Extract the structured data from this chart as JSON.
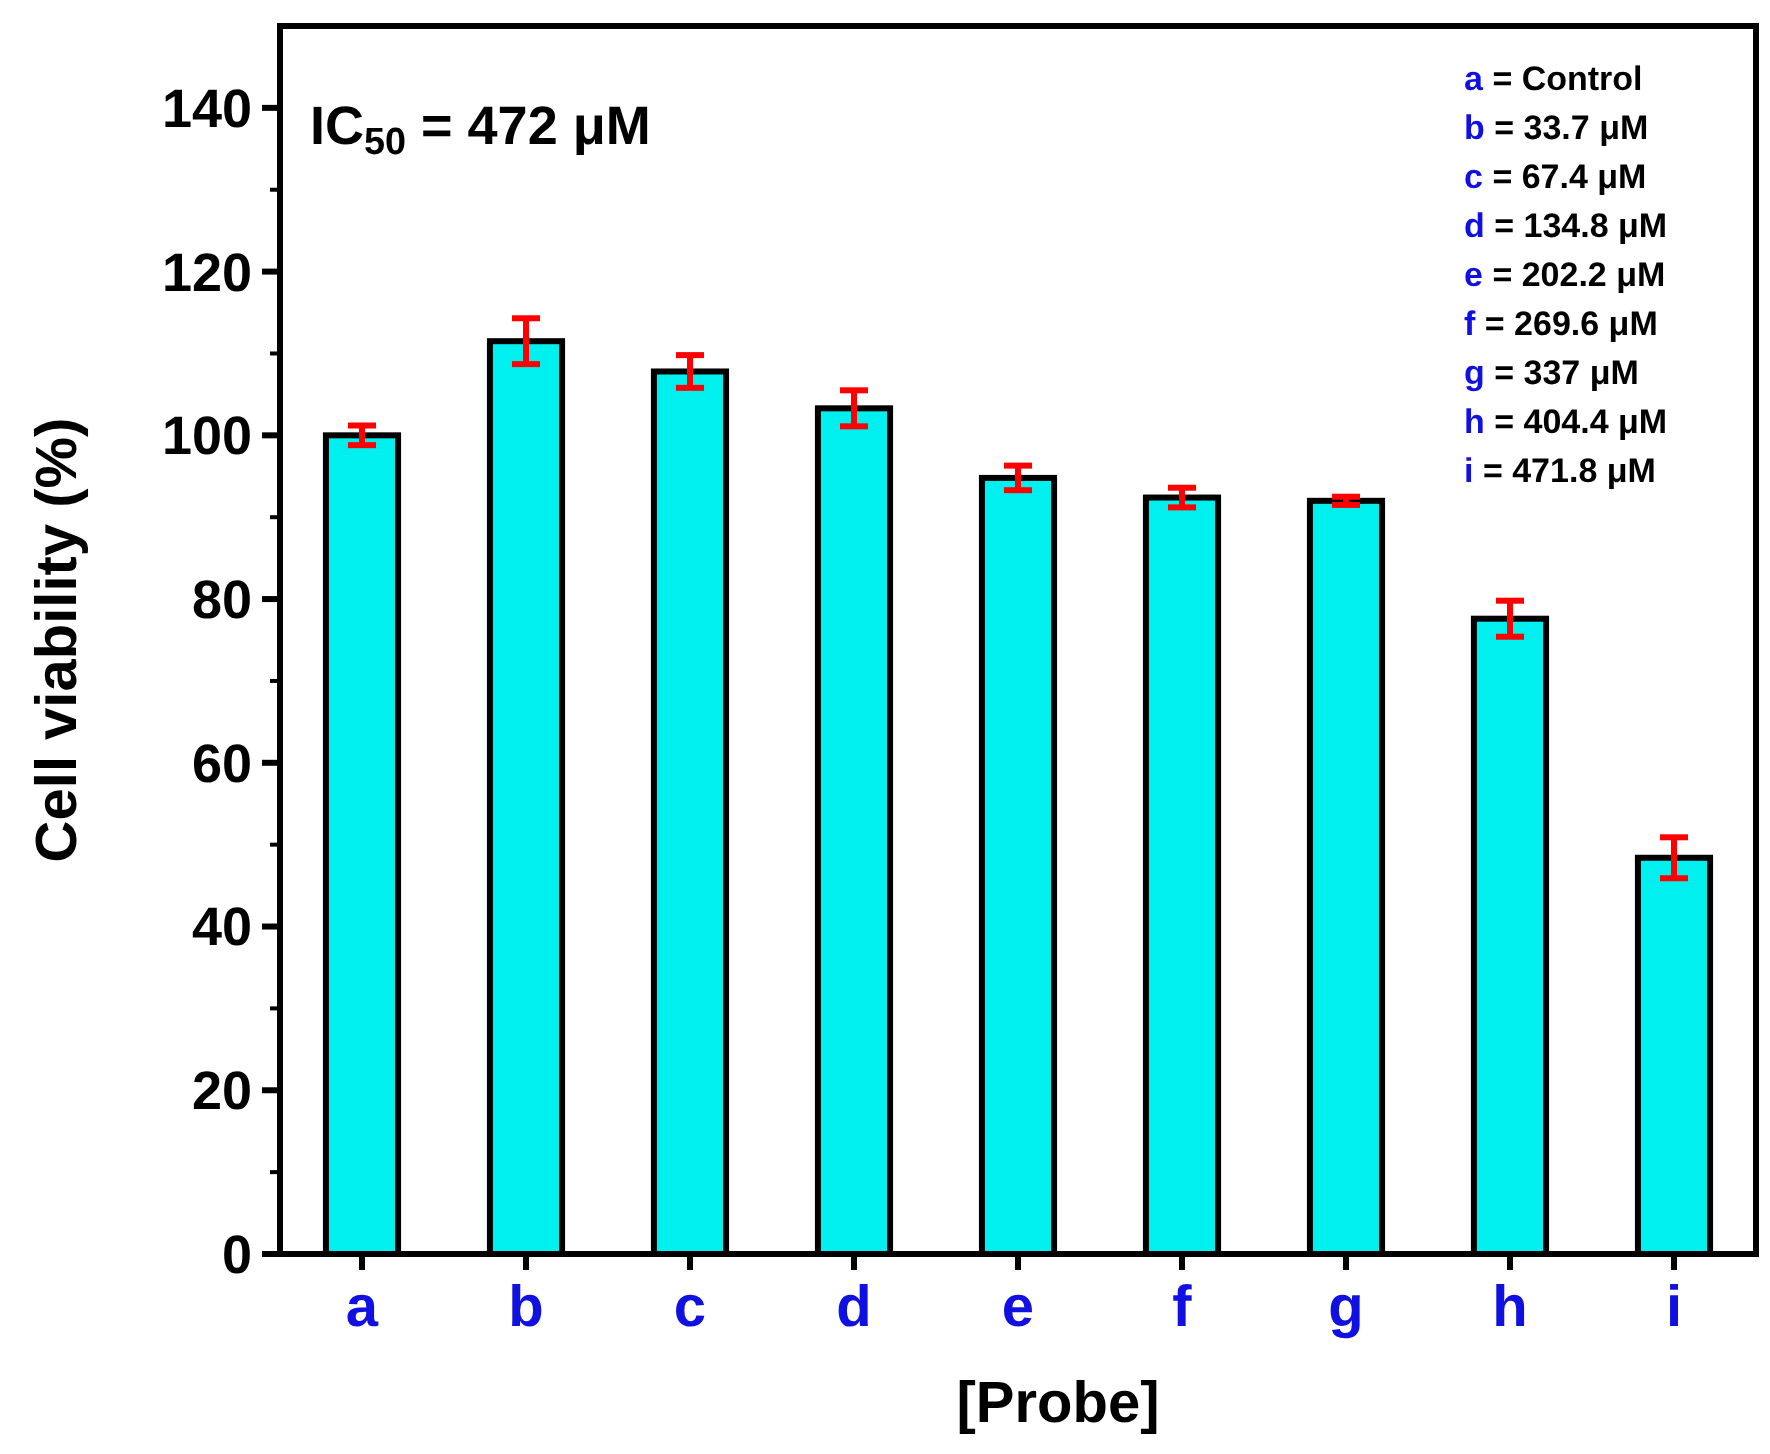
{
  "chart_data": {
    "type": "bar",
    "ylabel": "Cell viability (%)",
    "xlabel": "[Probe]",
    "categories": [
      "a",
      "b",
      "c",
      "d",
      "e",
      "f",
      "g",
      "h",
      "i"
    ],
    "values": [
      100,
      111.5,
      107.8,
      103.3,
      94.8,
      92.4,
      92,
      77.6,
      48.4
    ],
    "errors": [
      1.2,
      2.8,
      2,
      2.2,
      1.5,
      1.2,
      0.5,
      2.2,
      2.5
    ],
    "color": "#00f0f0",
    "ylim": [
      0,
      150
    ],
    "yticks": [
      0,
      20,
      40,
      60,
      80,
      100,
      120,
      140
    ],
    "grid": false,
    "annotations": [
      "IC$_{50}$ = 472 μM",
      "a = Control",
      "b = 33.7 μM",
      "c = 67.4 μM",
      "d = 134.8 μM",
      "e = 202.2 μM",
      "f = 269.6 μM",
      "g = 337 μM",
      "h = 404.4 μM",
      "i = 471.8 μM"
    ]
  }
}
